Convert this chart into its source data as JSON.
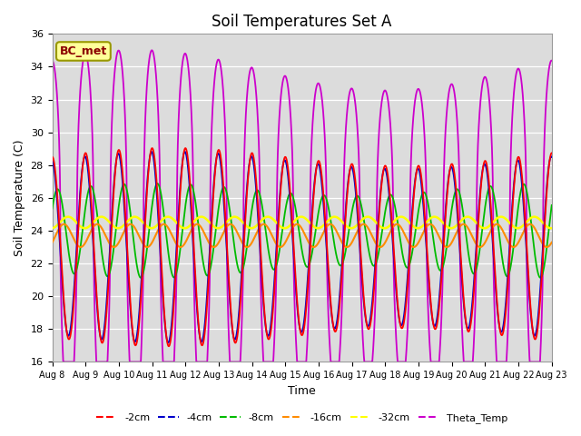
{
  "title": "Soil Temperatures Set A",
  "xlabel": "Time",
  "ylabel": "Soil Temperature (C)",
  "ylim": [
    16,
    36
  ],
  "yticks": [
    16,
    18,
    20,
    22,
    24,
    26,
    28,
    30,
    32,
    34,
    36
  ],
  "annotation": "BC_met",
  "series_colors": {
    "-2cm": "#FF0000",
    "-4cm": "#0000CC",
    "-8cm": "#00BB00",
    "-16cm": "#FF8C00",
    "-32cm": "#FFFF00",
    "Theta_Temp": "#CC00CC"
  },
  "x_tick_labels": [
    "Aug 8",
    "Aug 9",
    "Aug 10",
    "Aug 11",
    "Aug 12",
    "Aug 13",
    "Aug 14",
    "Aug 15",
    "Aug 16",
    "Aug 17",
    "Aug 18",
    "Aug 19",
    "Aug 20",
    "Aug 21",
    "Aug 22",
    "Aug 23"
  ],
  "background_color": "#DCDCDC",
  "title_fontsize": 12,
  "axis_label_fontsize": 9
}
